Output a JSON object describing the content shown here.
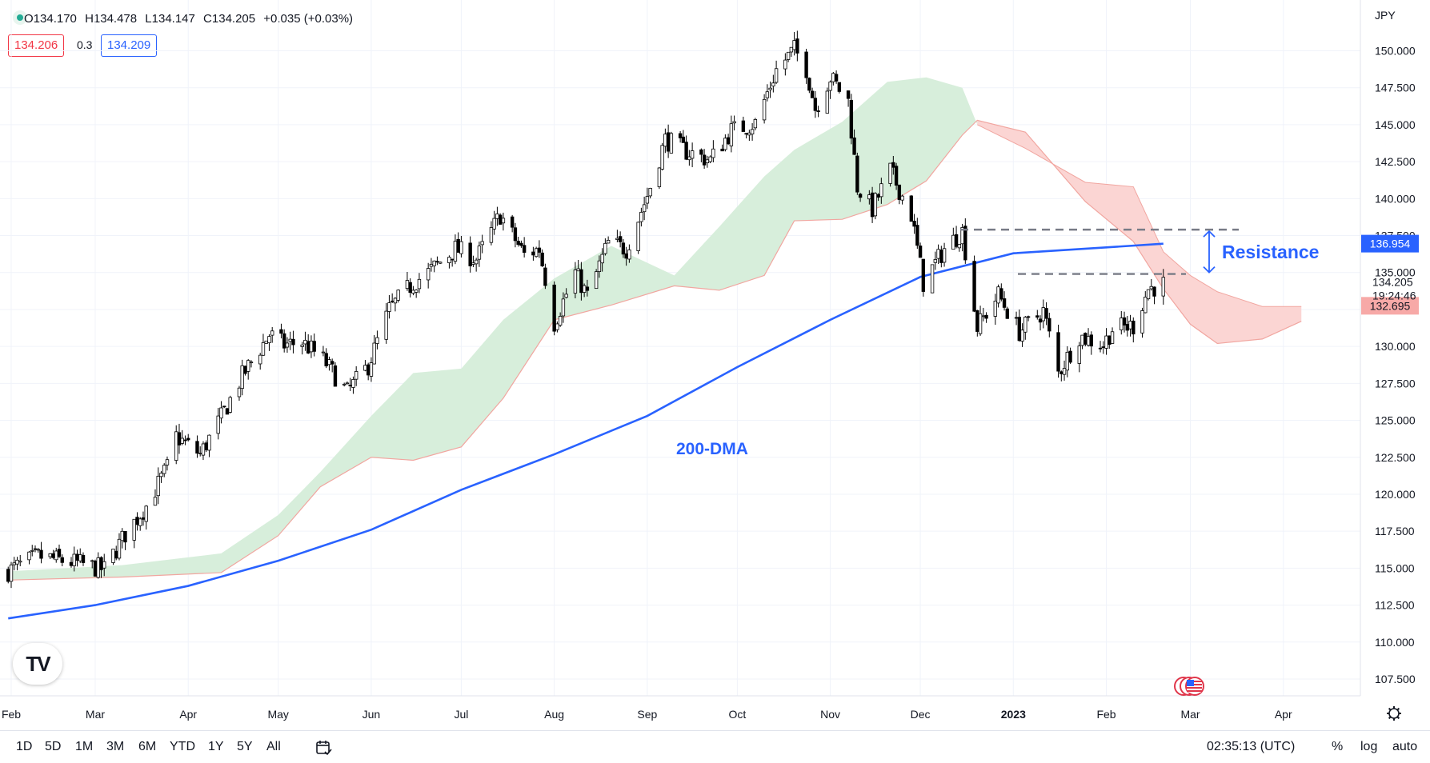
{
  "legend": {
    "open": "O134.170",
    "high": "H134.478",
    "low": "L134.147",
    "close": "C134.205",
    "change": "+0.035 (+0.03%)",
    "sell_price": "134.206",
    "spread": "0.3",
    "buy_price": "134.209"
  },
  "currency": "JPY",
  "range_buttons": [
    "1D",
    "5D",
    "1M",
    "3M",
    "6M",
    "YTD",
    "1Y",
    "5Y",
    "All"
  ],
  "clock": "02:35:13 (UTC)",
  "scale_buttons": {
    "percent": "%",
    "log": "log",
    "auto": "auto"
  },
  "annotations": {
    "dma": "200-DMA",
    "resistance": "Resistance"
  },
  "price_labels": {
    "ma": {
      "value": "136.954",
      "color": "#2962ff"
    },
    "last": {
      "value": "134.205",
      "countdown": "19:24:46"
    },
    "cloud": {
      "value": "132.695",
      "color": "#f7a9a7"
    }
  },
  "colors": {
    "candle_up": "#ffffff",
    "candle_down": "#000000",
    "ma": "#2962ff",
    "cloud_bull": "#d7eedb",
    "cloud_bear": "#fbd5d3",
    "span_line": "#f1a6a0",
    "dashed": "#787b86",
    "annotation": "#2962ff"
  },
  "chart_data": {
    "type": "candlestick",
    "y_axis": {
      "ticks": [
        107.5,
        110.0,
        112.5,
        115.0,
        117.5,
        120.0,
        122.5,
        125.0,
        127.5,
        130.0,
        132.5,
        135.0,
        137.5,
        140.0,
        142.5,
        145.0,
        147.5,
        150.0
      ],
      "range": [
        106.2,
        152.0
      ],
      "unit": "JPY"
    },
    "x_axis": {
      "range": [
        "2022-02-01",
        "2023-04-08"
      ],
      "ticks": [
        {
          "label": "Feb",
          "date": "2022-02-01"
        },
        {
          "label": "Mar",
          "date": "2022-03-01"
        },
        {
          "label": "Apr",
          "date": "2022-04-01"
        },
        {
          "label": "May",
          "date": "2022-05-01"
        },
        {
          "label": "Jun",
          "date": "2022-06-01"
        },
        {
          "label": "Jul",
          "date": "2022-07-01"
        },
        {
          "label": "Aug",
          "date": "2022-08-01"
        },
        {
          "label": "Sep",
          "date": "2022-09-01"
        },
        {
          "label": "Oct",
          "date": "2022-10-01"
        },
        {
          "label": "Nov",
          "date": "2022-11-01"
        },
        {
          "label": "Dec",
          "date": "2022-12-01"
        },
        {
          "label": "2023",
          "date": "2023-01-01"
        },
        {
          "label": "Feb",
          "date": "2023-02-01"
        },
        {
          "label": "Mar",
          "date": "2023-03-01"
        },
        {
          "label": "Apr",
          "date": "2023-04-01"
        }
      ]
    },
    "close_path": [
      [
        "2022-01-31",
        114.8
      ],
      [
        "2022-02-10",
        115.8
      ],
      [
        "2022-02-24",
        115.3
      ],
      [
        "2022-03-04",
        114.9
      ],
      [
        "2022-03-11",
        117.3
      ],
      [
        "2022-03-18",
        119.2
      ],
      [
        "2022-03-25",
        121.8
      ],
      [
        "2022-03-28",
        123.9
      ],
      [
        "2022-04-05",
        122.7
      ],
      [
        "2022-04-12",
        125.2
      ],
      [
        "2022-04-19",
        128.0
      ],
      [
        "2022-04-28",
        130.8
      ],
      [
        "2022-05-03",
        130.1
      ],
      [
        "2022-05-09",
        130.3
      ],
      [
        "2022-05-16",
        129.1
      ],
      [
        "2022-05-24",
        126.9
      ],
      [
        "2022-05-31",
        128.7
      ],
      [
        "2022-06-07",
        132.5
      ],
      [
        "2022-06-15",
        134.3
      ],
      [
        "2022-06-20",
        135.0
      ],
      [
        "2022-06-29",
        136.6
      ],
      [
        "2022-07-06",
        135.9
      ],
      [
        "2022-07-14",
        138.9
      ],
      [
        "2022-07-22",
        136.2
      ],
      [
        "2022-07-27",
        136.6
      ],
      [
        "2022-08-01",
        131.6
      ],
      [
        "2022-08-08",
        135.0
      ],
      [
        "2022-08-12",
        133.4
      ],
      [
        "2022-08-19",
        137.0
      ],
      [
        "2022-08-25",
        136.6
      ],
      [
        "2022-09-01",
        140.2
      ],
      [
        "2022-09-07",
        144.0
      ],
      [
        "2022-09-14",
        143.2
      ],
      [
        "2022-09-22",
        142.6
      ],
      [
        "2022-09-29",
        144.6
      ],
      [
        "2022-10-07",
        145.1
      ],
      [
        "2022-10-14",
        148.7
      ],
      [
        "2022-10-20",
        150.1
      ],
      [
        "2022-10-24",
        148.8
      ],
      [
        "2022-10-27",
        146.1
      ],
      [
        "2022-11-01",
        148.2
      ],
      [
        "2022-11-07",
        146.6
      ],
      [
        "2022-11-10",
        140.8
      ],
      [
        "2022-11-15",
        139.3
      ],
      [
        "2022-11-21",
        141.9
      ],
      [
        "2022-11-28",
        138.9
      ],
      [
        "2022-12-02",
        134.3
      ],
      [
        "2022-12-09",
        136.6
      ],
      [
        "2022-12-15",
        137.8
      ],
      [
        "2022-12-20",
        131.3
      ],
      [
        "2022-12-27",
        133.5
      ],
      [
        "2023-01-03",
        131.0
      ],
      [
        "2023-01-11",
        132.4
      ],
      [
        "2023-01-16",
        128.2
      ],
      [
        "2023-01-23",
        130.7
      ],
      [
        "2023-01-31",
        130.1
      ],
      [
        "2023-02-03",
        131.2
      ],
      [
        "2023-02-10",
        131.4
      ],
      [
        "2023-02-15",
        133.9
      ],
      [
        "2023-02-20",
        134.2
      ]
    ],
    "ma200_path": [
      [
        "2022-01-31",
        111.6
      ],
      [
        "2022-03-01",
        112.5
      ],
      [
        "2022-04-01",
        113.8
      ],
      [
        "2022-05-01",
        115.5
      ],
      [
        "2022-06-01",
        117.6
      ],
      [
        "2022-07-01",
        120.3
      ],
      [
        "2022-08-01",
        122.7
      ],
      [
        "2022-09-01",
        125.3
      ],
      [
        "2022-10-01",
        128.6
      ],
      [
        "2022-11-01",
        131.8
      ],
      [
        "2022-12-01",
        134.7
      ],
      [
        "2023-01-01",
        136.3
      ],
      [
        "2023-02-01",
        136.7
      ],
      [
        "2023-02-20",
        136.95
      ]
    ],
    "cloud_lower": [
      [
        "2022-02-01",
        114.2
      ],
      [
        "2022-03-10",
        114.4
      ],
      [
        "2022-04-12",
        114.7
      ],
      [
        "2022-05-01",
        117.2
      ],
      [
        "2022-05-15",
        120.5
      ],
      [
        "2022-06-01",
        122.5
      ],
      [
        "2022-06-15",
        122.3
      ],
      [
        "2022-07-01",
        123.2
      ],
      [
        "2022-07-15",
        126.5
      ],
      [
        "2022-08-01",
        131.8
      ],
      [
        "2022-08-20",
        132.8
      ],
      [
        "2022-09-10",
        134.1
      ],
      [
        "2022-09-25",
        133.8
      ],
      [
        "2022-10-10",
        134.8
      ],
      [
        "2022-10-20",
        138.5
      ],
      [
        "2022-11-05",
        138.6
      ],
      [
        "2022-11-20",
        139.6
      ],
      [
        "2022-12-03",
        141.2
      ],
      [
        "2022-12-15",
        144.3
      ],
      [
        "2022-12-20",
        145.3
      ],
      [
        "2023-01-05",
        144.5
      ],
      [
        "2023-01-25",
        139.8
      ],
      [
        "2023-02-10",
        137.1
      ],
      [
        "2023-02-20",
        133.9
      ],
      [
        "2023-03-01",
        131.5
      ],
      [
        "2023-03-10",
        130.2
      ],
      [
        "2023-03-25",
        130.5
      ],
      [
        "2023-04-07",
        131.7
      ]
    ],
    "cloud_upper": [
      [
        "2022-02-01",
        114.8
      ],
      [
        "2022-03-10",
        115.2
      ],
      [
        "2022-04-12",
        116.0
      ],
      [
        "2022-05-01",
        118.6
      ],
      [
        "2022-05-15",
        121.5
      ],
      [
        "2022-06-01",
        125.3
      ],
      [
        "2022-06-15",
        128.2
      ],
      [
        "2022-07-01",
        128.5
      ],
      [
        "2022-07-15",
        131.8
      ],
      [
        "2022-08-01",
        134.6
      ],
      [
        "2022-08-20",
        136.8
      ],
      [
        "2022-09-10",
        134.8
      ],
      [
        "2022-09-25",
        138.1
      ],
      [
        "2022-10-10",
        141.5
      ],
      [
        "2022-10-20",
        143.3
      ],
      [
        "2022-11-05",
        145.2
      ],
      [
        "2022-11-20",
        147.9
      ],
      [
        "2022-12-03",
        148.2
      ],
      [
        "2022-12-15",
        147.5
      ],
      [
        "2022-12-20",
        145.0
      ],
      [
        "2023-01-05",
        143.4
      ],
      [
        "2023-01-25",
        141.1
      ],
      [
        "2023-02-10",
        140.8
      ],
      [
        "2023-02-20",
        136.4
      ],
      [
        "2023-03-01",
        134.8
      ],
      [
        "2023-03-10",
        133.7
      ],
      [
        "2023-03-25",
        132.7
      ],
      [
        "2023-04-07",
        132.7
      ]
    ],
    "resistance_upper": 137.9,
    "resistance_lower": 134.9,
    "last_price": 134.205
  }
}
